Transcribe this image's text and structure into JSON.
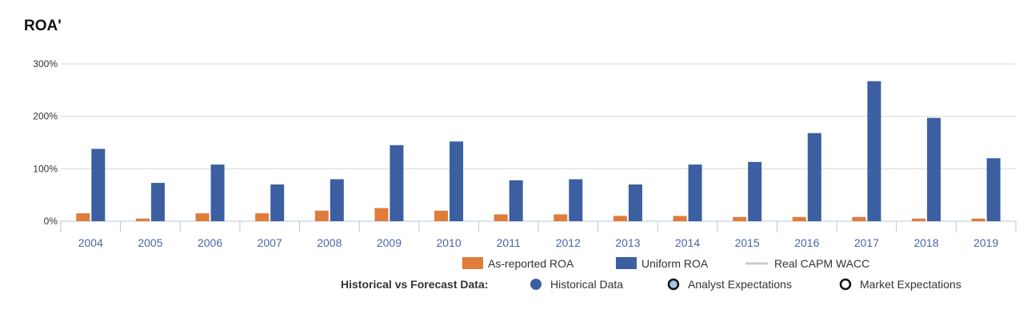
{
  "title": "ROA'",
  "chart_data": {
    "type": "bar",
    "title": "ROA'",
    "categories": [
      "2004",
      "2005",
      "2006",
      "2007",
      "2008",
      "2009",
      "2010",
      "2011",
      "2012",
      "2013",
      "2014",
      "2015",
      "2016",
      "2017",
      "2018",
      "2019"
    ],
    "series": [
      {
        "name": "As-reported ROA",
        "color": "#e07b39",
        "values": [
          15,
          5,
          15,
          15,
          20,
          25,
          20,
          13,
          13,
          10,
          10,
          8,
          8,
          8,
          5,
          5
        ]
      },
      {
        "name": "Uniform ROA",
        "color": "#3b5fa0",
        "values": [
          138,
          73,
          108,
          70,
          80,
          145,
          152,
          78,
          80,
          70,
          108,
          113,
          168,
          267,
          197,
          120
        ]
      }
    ],
    "ylim": [
      0,
      300
    ],
    "yticks": [
      0,
      100,
      200,
      300
    ],
    "ytick_labels": [
      "0%",
      "100%",
      "200%",
      "300%"
    ],
    "grid": true,
    "legend": {
      "placement": "bottom",
      "items": [
        {
          "label": "As-reported ROA",
          "color": "#e07b39",
          "marker": "square"
        },
        {
          "label": "Uniform ROA",
          "color": "#3b5fa0",
          "marker": "square"
        },
        {
          "label": "Real CAPM WACC",
          "color": "#cccccc",
          "marker": "line",
          "muted": true
        }
      ],
      "forecast_label": "Historical vs Forecast Data:",
      "forecast_items": [
        {
          "label": "Historical Data",
          "marker": "filled-circle",
          "color": "#3b5fa0"
        },
        {
          "label": "Analyst Expectations",
          "marker": "ring-light",
          "color": "#a9c4e8"
        },
        {
          "label": "Market Expectations",
          "marker": "ring",
          "color": "#ffffff"
        }
      ]
    }
  }
}
